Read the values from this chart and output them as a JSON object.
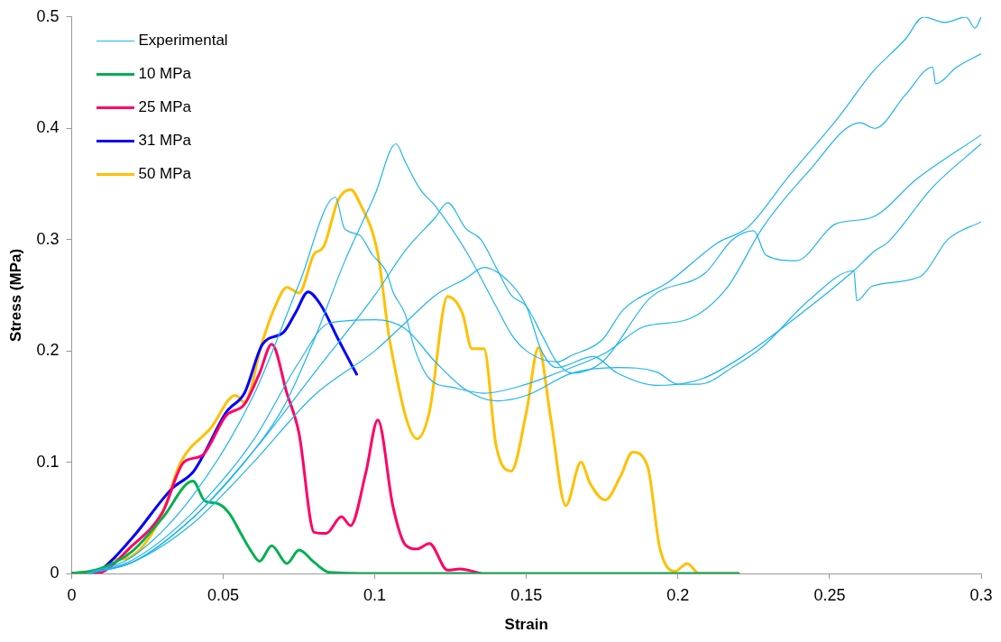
{
  "chart_data": {
    "type": "line",
    "xlabel": "Strain",
    "ylabel": "Stress (MPa)",
    "xlim": [
      0,
      0.3
    ],
    "xticks": [
      0,
      0.05,
      0.1,
      0.15,
      0.2,
      0.25,
      0.3
    ],
    "ylim": [
      0,
      0.5
    ],
    "yticks": [
      0,
      0.1,
      0.2,
      0.3,
      0.4,
      0.5
    ],
    "grid": false,
    "legend": "top left",
    "marker": "none",
    "line_style": "solid",
    "series": [
      {
        "name": "Experimental",
        "color": "#1fb4ec",
        "x": [
          0.005,
          0.02,
          0.04,
          0.06,
          0.07,
          0.08,
          0.09,
          0.1,
          0.107,
          0.11,
          0.115,
          0.12,
          0.13,
          0.14,
          0.145,
          0.15,
          0.16,
          0.165,
          0.175,
          0.182,
          0.197,
          0.213,
          0.223,
          0.236,
          0.253,
          0.264,
          0.275,
          0.281,
          0.288,
          0.295,
          0.298,
          0.3
        ],
        "values": [
          0,
          0.01,
          0.05,
          0.11,
          0.15,
          0.21,
          0.28,
          0.34,
          0.386,
          0.37,
          0.345,
          0.33,
          0.29,
          0.24,
          0.215,
          0.2,
          0.19,
          0.196,
          0.21,
          0.237,
          0.262,
          0.297,
          0.311,
          0.355,
          0.41,
          0.45,
          0.48,
          0.5,
          0.495,
          0.5,
          0.49,
          0.5
        ]
      },
      {
        "color": "#1fb4ec",
        "x": [
          0.005,
          0.02,
          0.04,
          0.06,
          0.075,
          0.087,
          0.09,
          0.095,
          0.099,
          0.104,
          0.106,
          0.11,
          0.113,
          0.118,
          0.126,
          0.136,
          0.15,
          0.16,
          0.176,
          0.189,
          0.203,
          0.216,
          0.228,
          0.243,
          0.26,
          0.265,
          0.275,
          0.284,
          0.285,
          0.292,
          0.3
        ],
        "values": [
          0,
          0.015,
          0.07,
          0.16,
          0.26,
          0.338,
          0.31,
          0.304,
          0.287,
          0.27,
          0.253,
          0.233,
          0.203,
          0.175,
          0.167,
          0.162,
          0.17,
          0.18,
          0.198,
          0.222,
          0.228,
          0.256,
          0.311,
          0.361,
          0.405,
          0.4,
          0.43,
          0.455,
          0.44,
          0.455,
          0.467
        ]
      },
      {
        "color": "#1fb4ec",
        "x": [
          0.005,
          0.02,
          0.04,
          0.06,
          0.08,
          0.1,
          0.11,
          0.12,
          0.124,
          0.13,
          0.135,
          0.14,
          0.145,
          0.15,
          0.155,
          0.16,
          0.165,
          0.175,
          0.191,
          0.209,
          0.218,
          0.225,
          0.229,
          0.239,
          0.252,
          0.264,
          0.279,
          0.3
        ],
        "values": [
          0,
          0.01,
          0.05,
          0.11,
          0.18,
          0.25,
          0.29,
          0.32,
          0.333,
          0.31,
          0.3,
          0.275,
          0.25,
          0.24,
          0.215,
          0.19,
          0.18,
          0.19,
          0.248,
          0.27,
          0.3,
          0.308,
          0.286,
          0.281,
          0.314,
          0.32,
          0.355,
          0.394
        ]
      },
      {
        "color": "#1fb4ec",
        "x": [
          0.005,
          0.02,
          0.04,
          0.06,
          0.08,
          0.1,
          0.11,
          0.12,
          0.13,
          0.136,
          0.145,
          0.15,
          0.155,
          0.16,
          0.172,
          0.18,
          0.193,
          0.208,
          0.223,
          0.238,
          0.258,
          0.265,
          0.269,
          0.284,
          0.3
        ],
        "values": [
          0,
          0.01,
          0.045,
          0.1,
          0.16,
          0.2,
          0.225,
          0.25,
          0.265,
          0.275,
          0.26,
          0.24,
          0.2,
          0.185,
          0.195,
          0.18,
          0.169,
          0.175,
          0.198,
          0.228,
          0.272,
          0.29,
          0.297,
          0.347,
          0.386
        ]
      },
      {
        "color": "#1fb4ec",
        "x": [
          0.005,
          0.02,
          0.04,
          0.06,
          0.075,
          0.085,
          0.1,
          0.11,
          0.12,
          0.13,
          0.14,
          0.15,
          0.165,
          0.18,
          0.193,
          0.2,
          0.207,
          0.219,
          0.228,
          0.243,
          0.258,
          0.259,
          0.264,
          0.28,
          0.289,
          0.3
        ],
        "values": [
          0,
          0.012,
          0.055,
          0.12,
          0.19,
          0.225,
          0.228,
          0.22,
          0.19,
          0.165,
          0.155,
          0.16,
          0.18,
          0.185,
          0.181,
          0.17,
          0.17,
          0.187,
          0.204,
          0.245,
          0.272,
          0.245,
          0.258,
          0.267,
          0.3,
          0.316
        ]
      },
      {
        "name": "10 MPa",
        "color": "#00b050",
        "x": [
          0,
          0.009,
          0.02,
          0.03,
          0.04,
          0.044,
          0.048,
          0.052,
          0.056,
          0.059,
          0.062,
          0.066,
          0.071,
          0.075,
          0.08,
          0.085,
          0.1,
          0.15,
          0.2,
          0.22
        ],
        "values": [
          0,
          0.004,
          0.02,
          0.05,
          0.083,
          0.065,
          0.063,
          0.054,
          0.035,
          0.021,
          0.011,
          0.025,
          0.009,
          0.021,
          0.01,
          0.001,
          0,
          0,
          0,
          0
        ]
      },
      {
        "name": "25 MPa",
        "color": "#ff0066",
        "x": [
          0,
          0.008,
          0.02,
          0.03,
          0.037,
          0.043,
          0.051,
          0.057,
          0.062,
          0.066,
          0.071,
          0.075,
          0.08,
          0.084,
          0.089,
          0.092,
          0.097,
          0.101,
          0.106,
          0.11,
          0.114,
          0.118,
          0.124,
          0.128,
          0.135
        ],
        "values": [
          0,
          0,
          0.025,
          0.055,
          0.1,
          0.106,
          0.142,
          0.152,
          0.18,
          0.206,
          0.162,
          0.126,
          0.037,
          0.036,
          0.051,
          0.043,
          0.09,
          0.138,
          0.06,
          0.026,
          0.022,
          0.027,
          0.003,
          0.004,
          0
        ]
      },
      {
        "name": "31 MPa",
        "color": "#0000ff",
        "x": [
          0,
          0.006,
          0.009,
          0.02,
          0.033,
          0.04,
          0.043,
          0.051,
          0.057,
          0.063,
          0.07,
          0.074,
          0.078,
          0.082,
          0.088,
          0.094
        ],
        "values": [
          0,
          0,
          0.002,
          0.032,
          0.076,
          0.091,
          0.104,
          0.145,
          0.162,
          0.206,
          0.217,
          0.235,
          0.253,
          0.242,
          0.21,
          0.179
        ]
      },
      {
        "name": "50 MPa",
        "color": "#ffc000",
        "x": [
          0,
          0.009,
          0.014,
          0.017,
          0.029,
          0.036,
          0.046,
          0.054,
          0.057,
          0.063,
          0.067,
          0.071,
          0.075,
          0.08,
          0.083,
          0.088,
          0.092,
          0.095,
          0.101,
          0.105,
          0.114,
          0.118,
          0.124,
          0.129,
          0.132,
          0.136,
          0.14,
          0.145,
          0.15,
          0.154,
          0.158,
          0.163,
          0.168,
          0.171,
          0.176,
          0.181,
          0.185,
          0.19,
          0.194,
          0.199,
          0.203,
          0.207,
          0.22
        ],
        "values": [
          0,
          0.001,
          0.013,
          0.013,
          0.048,
          0.1,
          0.131,
          0.16,
          0.154,
          0.209,
          0.239,
          0.257,
          0.252,
          0.287,
          0.293,
          0.336,
          0.345,
          0.333,
          0.287,
          0.208,
          0.121,
          0.145,
          0.249,
          0.233,
          0.202,
          0.202,
          0.115,
          0.092,
          0.145,
          0.203,
          0.14,
          0.061,
          0.1,
          0.081,
          0.066,
          0.087,
          0.109,
          0.096,
          0.023,
          0.002,
          0.009,
          0,
          0
        ]
      }
    ]
  }
}
